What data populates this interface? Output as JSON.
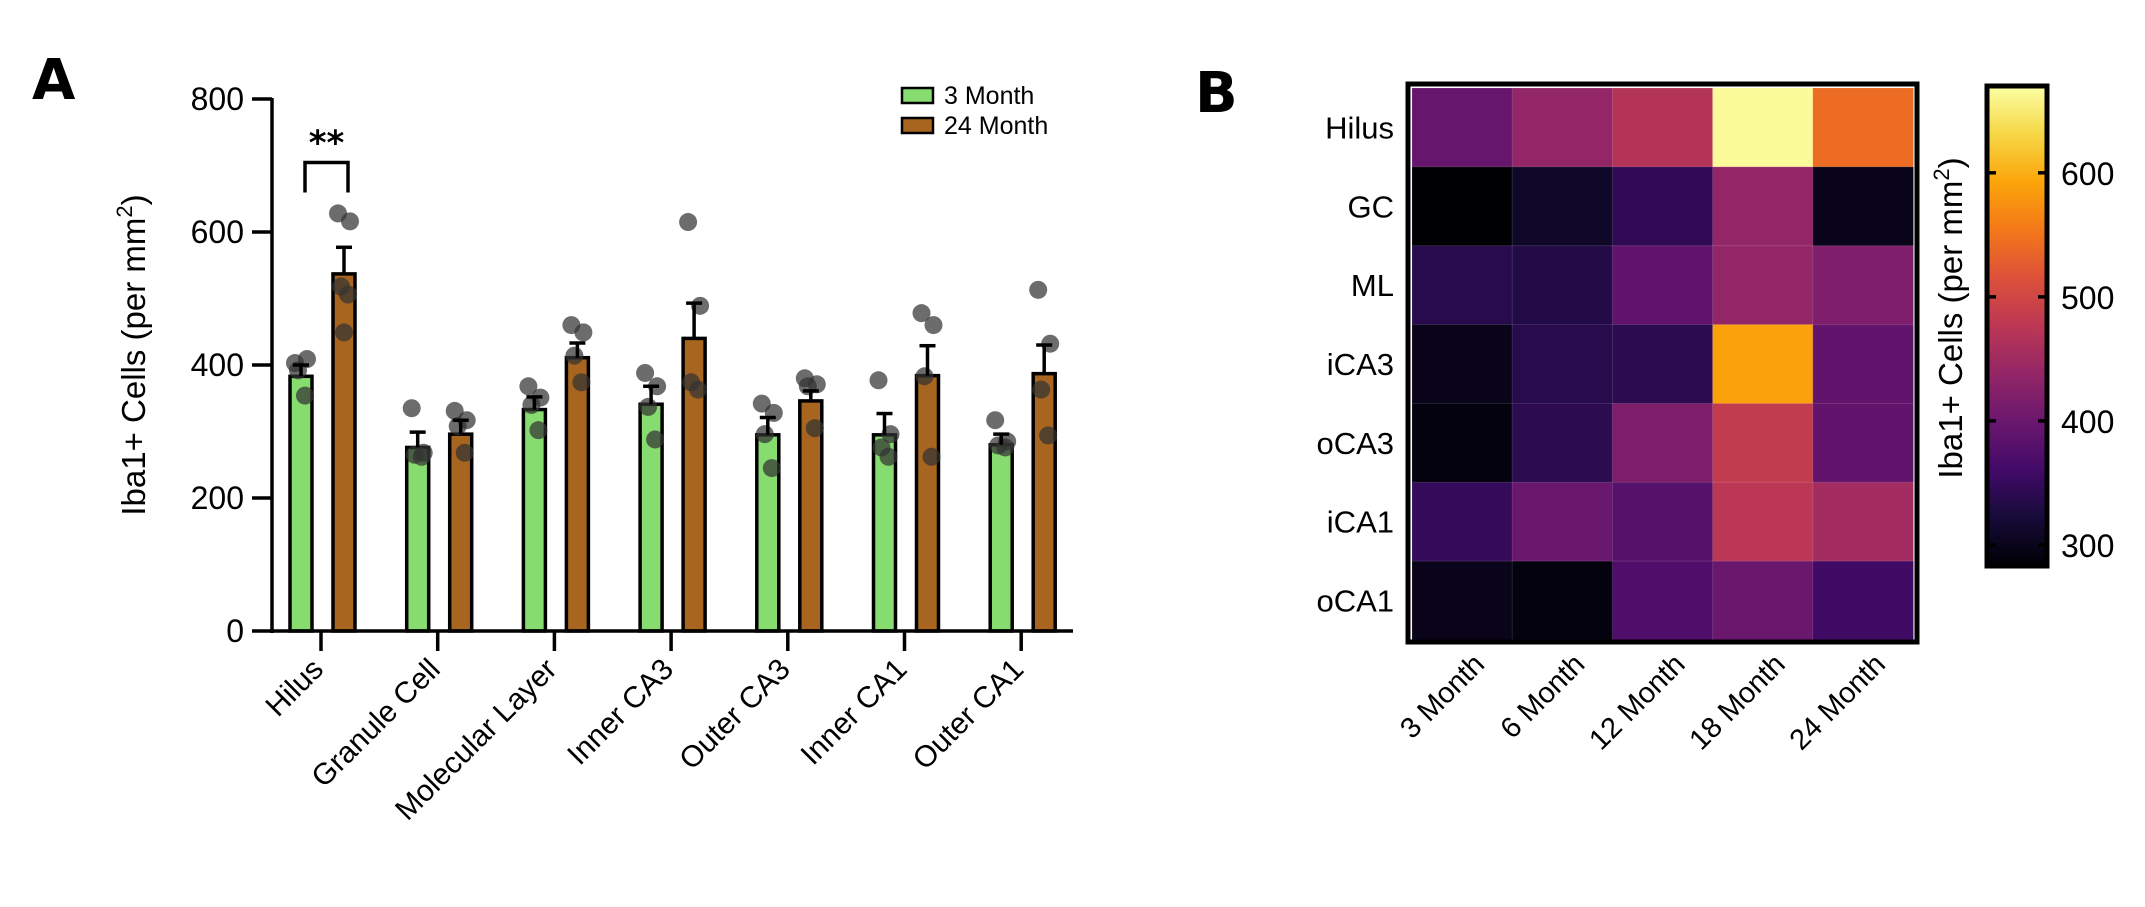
{
  "panels": {
    "a_label": "A",
    "b_label": "B"
  },
  "chart_data": [
    {
      "type": "bar",
      "panel": "A",
      "title": "",
      "xlabel": "",
      "ylabel": "Iba1+ Cells (per mm²)",
      "ylabel_parts": {
        "main": "Iba1+ Cells (per mm",
        "sup": "2",
        "close": ")"
      },
      "ylim": [
        0,
        800
      ],
      "yticks": [
        0,
        200,
        400,
        600,
        800
      ],
      "ytick_labels": [
        "0",
        "200",
        "400",
        "600",
        "800"
      ],
      "grid": false,
      "legend_position": "top-right",
      "categories": [
        "Hilus",
        "Granule Cell",
        "Molecular Layer",
        "Inner CA3",
        "Outer CA3",
        "Inner CA1",
        "Outer CA1"
      ],
      "series": [
        {
          "name": "3 Month",
          "color": "#86DC6E",
          "values": [
            383,
            276,
            333,
            341,
            295,
            295,
            280
          ],
          "sem_upper": [
            400,
            299,
            352,
            368,
            321,
            327,
            296
          ],
          "points": [
            [
              403,
              409,
              392,
              354
            ],
            [
              335,
              268,
              265,
              262
            ],
            [
              368,
              351,
              340,
              302
            ],
            [
              388,
              368,
              337,
              288
            ],
            [
              342,
              328,
              296,
              245
            ],
            [
              377,
              296,
              276,
              262
            ],
            [
              317,
              285,
              279,
              276
            ]
          ]
        },
        {
          "name": "24 Month",
          "color": "#A8651F",
          "values": [
            537,
            296,
            411,
            440,
            346,
            384,
            387
          ],
          "sem_upper": [
            577,
            317,
            433,
            493,
            361,
            429,
            430
          ],
          "points": [
            [
              628,
              616,
              518,
              506,
              449
            ],
            [
              331,
              317,
              308,
              268
            ],
            [
              460,
              449,
              414,
              374
            ],
            [
              615,
              489,
              374,
              363
            ],
            [
              380,
              371,
              368,
              305
            ],
            [
              478,
              460,
              383,
              262
            ],
            [
              513,
              432,
              363,
              294
            ]
          ]
        }
      ],
      "annotations": [
        {
          "type": "significance",
          "text": "**",
          "category": "Hilus",
          "between": [
            "3 Month",
            "24 Month"
          ],
          "y": 700
        }
      ],
      "point_color": "#333333"
    },
    {
      "type": "heatmap",
      "panel": "B",
      "title": "",
      "row_labels": [
        "Hilus",
        "GC",
        "ML",
        "iCA3",
        "oCA3",
        "iCA1",
        "oCA1"
      ],
      "col_labels": [
        "3 Month",
        "6 Month",
        "12 Month",
        "18 Month",
        "24 Month"
      ],
      "values": [
        [
          395,
          438,
          469,
          666,
          542
        ],
        [
          283,
          310,
          345,
          438,
          298
        ],
        [
          337,
          333,
          391,
          438,
          418
        ],
        [
          298,
          337,
          341,
          589,
          391
        ],
        [
          291,
          341,
          418,
          484,
          391
        ],
        [
          349,
          399,
          380,
          476,
          453
        ],
        [
          298,
          291,
          372,
          399,
          357
        ]
      ],
      "colormap": "inferno",
      "colorbar": {
        "range": [
          283,
          670
        ],
        "ticks": [
          300,
          400,
          500,
          600
        ],
        "tick_labels": [
          "300",
          "400",
          "500",
          "600"
        ],
        "label": "Iba1+ Cells (per mm²)",
        "label_parts": {
          "main": "Iba1+ Cells (per mm",
          "sup": "2",
          "close": ")"
        }
      }
    }
  ]
}
